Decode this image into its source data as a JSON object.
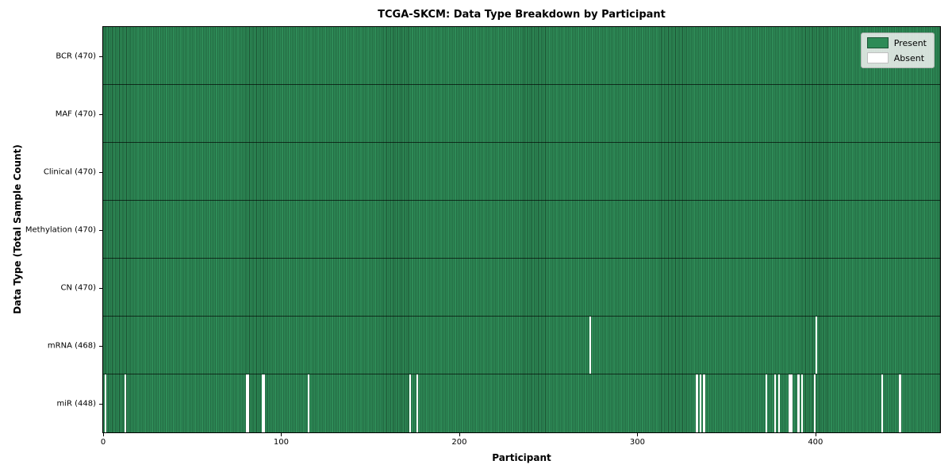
{
  "title": "TCGA-SKCM: Data Type Breakdown by Participant",
  "xlabel": "Participant",
  "ylabel": "Data Type (Total Sample Count)",
  "legend": {
    "present_label": "Present",
    "absent_label": "Absent"
  },
  "colors": {
    "present": "#2e8b57",
    "absent": "#ffffff",
    "cell_edge": "rgba(0,0,0,0.42)",
    "row_divider": "rgba(0,0,0,0.65)",
    "axes_spine": "#000000",
    "legend_bg": "rgba(242,242,242,0.85)"
  },
  "chart_data": {
    "type": "heatmap",
    "title": "TCGA-SKCM: Data Type Breakdown by Participant",
    "xlabel": "Participant",
    "ylabel": "Data Type (Total Sample Count)",
    "n_participants": 470,
    "x_ticks": [
      0,
      100,
      200,
      300,
      400
    ],
    "legend_entries": [
      "Present",
      "Absent"
    ],
    "legend_position": "upper right",
    "rows": [
      {
        "label": "BCR (470)",
        "data_type": "BCR",
        "present_count": 470,
        "absent_participants": []
      },
      {
        "label": "MAF (470)",
        "data_type": "MAF",
        "present_count": 470,
        "absent_participants": []
      },
      {
        "label": "Clinical (470)",
        "data_type": "Clinical",
        "present_count": 470,
        "absent_participants": []
      },
      {
        "label": "Methylation (470)",
        "data_type": "Methylation",
        "present_count": 470,
        "absent_participants": []
      },
      {
        "label": "CN (470)",
        "data_type": "CN",
        "present_count": 470,
        "absent_participants": []
      },
      {
        "label": "mRNA (468)",
        "data_type": "mRNA",
        "present_count": 468,
        "absent_participants": [
          273,
          400
        ]
      },
      {
        "label": "miR (448)",
        "data_type": "miR",
        "present_count": 448,
        "absent_participants": [
          1,
          12,
          80,
          81,
          89,
          90,
          115,
          172,
          176,
          333,
          335,
          337,
          372,
          377,
          379,
          385,
          386,
          390,
          392,
          399,
          437,
          447
        ]
      }
    ]
  }
}
